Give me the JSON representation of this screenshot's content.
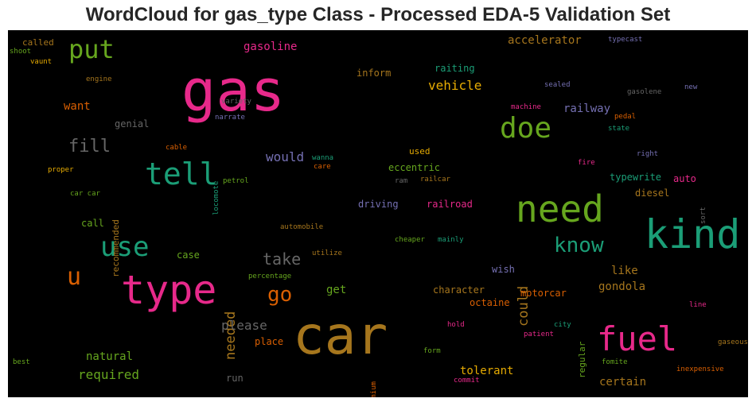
{
  "chart_data": {
    "type": "wordcloud",
    "title": "WordCloud for gas_type Class - Processed EDA-5 Validation Set",
    "background": "#000000",
    "words": [
      {
        "text": "gas",
        "color": "#e7298a",
        "size": 72
      },
      {
        "text": "car",
        "color": "#a6761d",
        "size": 66
      },
      {
        "text": "type",
        "color": "#e7298a",
        "size": 50
      },
      {
        "text": "kind",
        "color": "#1b9e77",
        "size": 50
      },
      {
        "text": "need",
        "color": "#66a61e",
        "size": 46
      },
      {
        "text": "fuel",
        "color": "#e7298a",
        "size": 42
      },
      {
        "text": "tell",
        "color": "#1b9e77",
        "size": 38
      },
      {
        "text": "doe",
        "color": "#66a61e",
        "size": 36
      },
      {
        "text": "use",
        "color": "#1b9e77",
        "size": 34
      },
      {
        "text": "put",
        "color": "#66a61e",
        "size": 32
      },
      {
        "text": "u",
        "color": "#d95f02",
        "size": 30
      },
      {
        "text": "know",
        "color": "#1b9e77",
        "size": 26
      },
      {
        "text": "go",
        "color": "#d95f02",
        "size": 26
      },
      {
        "text": "fill",
        "color": "#666666",
        "size": 22
      },
      {
        "text": "take",
        "color": "#666666",
        "size": 20
      },
      {
        "text": "needed",
        "color": "#a6761d",
        "size": 17
      },
      {
        "text": "could",
        "color": "#a6761d",
        "size": 17
      },
      {
        "text": "vehicle",
        "color": "#e6ab02",
        "size": 16
      },
      {
        "text": "please",
        "color": "#666666",
        "size": 16
      },
      {
        "text": "would",
        "color": "#7570b3",
        "size": 16
      },
      {
        "text": "required",
        "color": "#66a61e",
        "size": 16
      },
      {
        "text": "gasoline",
        "color": "#e7298a",
        "size": 14
      },
      {
        "text": "accelerator",
        "color": "#a6761d",
        "size": 14
      },
      {
        "text": "railway",
        "color": "#7570b3",
        "size": 14
      },
      {
        "text": "want",
        "color": "#d95f02",
        "size": 14
      },
      {
        "text": "natural",
        "color": "#66a61e",
        "size": 14
      },
      {
        "text": "tolerant",
        "color": "#e6ab02",
        "size": 14
      },
      {
        "text": "like",
        "color": "#a6761d",
        "size": 14
      },
      {
        "text": "gondola",
        "color": "#a6761d",
        "size": 14
      },
      {
        "text": "certain",
        "color": "#a6761d",
        "size": 14
      },
      {
        "text": "get",
        "color": "#66a61e",
        "size": 14
      },
      {
        "text": "genial",
        "color": "#666666",
        "size": 12
      },
      {
        "text": "raiting",
        "color": "#1b9e77",
        "size": 12
      },
      {
        "text": "inform",
        "color": "#a6761d",
        "size": 12
      },
      {
        "text": "eccentric",
        "color": "#66a61e",
        "size": 12
      },
      {
        "text": "driving",
        "color": "#7570b3",
        "size": 12
      },
      {
        "text": "railroad",
        "color": "#e7298a",
        "size": 12
      },
      {
        "text": "typewrite",
        "color": "#1b9e77",
        "size": 12
      },
      {
        "text": "diesel",
        "color": "#a6761d",
        "size": 12
      },
      {
        "text": "auto",
        "color": "#e7298a",
        "size": 12
      },
      {
        "text": "wish",
        "color": "#7570b3",
        "size": 12
      },
      {
        "text": "character",
        "color": "#a6761d",
        "size": 12
      },
      {
        "text": "motorcar",
        "color": "#d95f02",
        "size": 12
      },
      {
        "text": "octaine",
        "color": "#d95f02",
        "size": 12
      },
      {
        "text": "call",
        "color": "#66a61e",
        "size": 12
      },
      {
        "text": "case",
        "color": "#66a61e",
        "size": 12
      },
      {
        "text": "place",
        "color": "#d95f02",
        "size": 12
      },
      {
        "text": "run",
        "color": "#666666",
        "size": 12
      },
      {
        "text": "called",
        "color": "#a6761d",
        "size": 11
      },
      {
        "text": "used",
        "color": "#e6ab02",
        "size": 11
      },
      {
        "text": "recommended",
        "color": "#a6761d",
        "size": 11
      },
      {
        "text": "regular",
        "color": "#66a61e",
        "size": 11
      },
      {
        "text": "variety",
        "color": "#666666",
        "size": 9
      },
      {
        "text": "narrate",
        "color": "#7570b3",
        "size": 9
      },
      {
        "text": "engine",
        "color": "#a6761d",
        "size": 9
      },
      {
        "text": "shoot",
        "color": "#66a61e",
        "size": 9
      },
      {
        "text": "vaunt",
        "color": "#e6ab02",
        "size": 9
      },
      {
        "text": "typecast",
        "color": "#7570b3",
        "size": 9
      },
      {
        "text": "sealed",
        "color": "#7570b3",
        "size": 9
      },
      {
        "text": "gasolene",
        "color": "#666666",
        "size": 9
      },
      {
        "text": "new",
        "color": "#7570b3",
        "size": 9
      },
      {
        "text": "machine",
        "color": "#e7298a",
        "size": 9
      },
      {
        "text": "pedal",
        "color": "#d95f02",
        "size": 9
      },
      {
        "text": "state",
        "color": "#1b9e77",
        "size": 9
      },
      {
        "text": "right",
        "color": "#7570b3",
        "size": 9
      },
      {
        "text": "fire",
        "color": "#e7298a",
        "size": 9
      },
      {
        "text": "sort",
        "color": "#666666",
        "size": 9
      },
      {
        "text": "cable",
        "color": "#d95f02",
        "size": 9
      },
      {
        "text": "locomote",
        "color": "#1b9e77",
        "size": 9
      },
      {
        "text": "wanna",
        "color": "#1b9e77",
        "size": 9
      },
      {
        "text": "care",
        "color": "#d95f02",
        "size": 9
      },
      {
        "text": "proper",
        "color": "#e6ab02",
        "size": 9
      },
      {
        "text": "petrol",
        "color": "#66a61e",
        "size": 9
      },
      {
        "text": "ram",
        "color": "#666666",
        "size": 9
      },
      {
        "text": "railcar",
        "color": "#a6761d",
        "size": 9
      },
      {
        "text": "car car",
        "color": "#66a61e",
        "size": 9
      },
      {
        "text": "automobile",
        "color": "#a6761d",
        "size": 9
      },
      {
        "text": "cheaper",
        "color": "#66a61e",
        "size": 9
      },
      {
        "text": "mainly",
        "color": "#1b9e77",
        "size": 9
      },
      {
        "text": "utilize",
        "color": "#a6761d",
        "size": 9
      },
      {
        "text": "percentage",
        "color": "#66a61e",
        "size": 9
      },
      {
        "text": "line",
        "color": "#e7298a",
        "size": 9
      },
      {
        "text": "hold",
        "color": "#e7298a",
        "size": 9
      },
      {
        "text": "city",
        "color": "#1b9e77",
        "size": 9
      },
      {
        "text": "patient",
        "color": "#e7298a",
        "size": 9
      },
      {
        "text": "gaseous",
        "color": "#a6761d",
        "size": 9
      },
      {
        "text": "form",
        "color": "#66a61e",
        "size": 9
      },
      {
        "text": "fomite",
        "color": "#66a61e",
        "size": 9
      },
      {
        "text": "premium",
        "color": "#d95f02",
        "size": 9
      },
      {
        "text": "inexpensive",
        "color": "#d95f02",
        "size": 9
      },
      {
        "text": "best",
        "color": "#66a61e",
        "size": 9
      },
      {
        "text": "commit",
        "color": "#e7298a",
        "size": 9
      }
    ]
  }
}
